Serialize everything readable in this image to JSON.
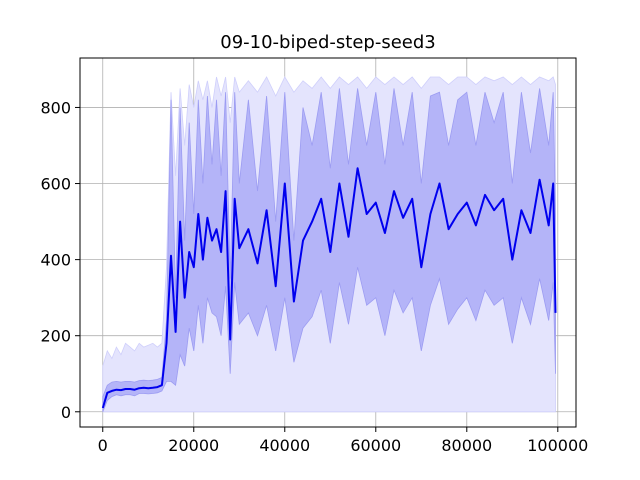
{
  "chart_data": {
    "type": "line",
    "title": "09-10-biped-step-seed3",
    "xlabel": "",
    "ylabel": "",
    "xlim": [
      -5000,
      104000
    ],
    "ylim": [
      -40,
      930
    ],
    "xticks": [
      0,
      20000,
      40000,
      60000,
      80000,
      100000
    ],
    "xtick_labels": [
      "0",
      "20000",
      "40000",
      "60000",
      "80000",
      "100000"
    ],
    "yticks": [
      0,
      200,
      400,
      600,
      800
    ],
    "ytick_labels": [
      "0",
      "200",
      "400",
      "600",
      "800"
    ],
    "grid": true,
    "colors": {
      "line": "#0000ee",
      "band_inner": "#b4b4f8",
      "band_outer": "#e4e4fd",
      "grid": "#b0b0b0",
      "axes": "#000000"
    },
    "series": [
      {
        "style": "mean-line",
        "x": [
          0,
          1000,
          2000,
          3000,
          4000,
          5000,
          6000,
          7000,
          8000,
          9000,
          10000,
          11000,
          12000,
          13000,
          14000,
          15000,
          16000,
          17000,
          18000,
          19000,
          20000,
          21000,
          22000,
          23000,
          24000,
          25000,
          26000,
          27000,
          28000,
          29000,
          30000,
          32000,
          34000,
          36000,
          38000,
          40000,
          42000,
          44000,
          46000,
          48000,
          50000,
          52000,
          54000,
          56000,
          58000,
          60000,
          62000,
          64000,
          66000,
          68000,
          70000,
          72000,
          74000,
          76000,
          78000,
          80000,
          82000,
          84000,
          86000,
          88000,
          90000,
          92000,
          94000,
          96000,
          98000,
          99000,
          99500
        ],
        "y": [
          10,
          50,
          55,
          58,
          57,
          60,
          60,
          58,
          62,
          63,
          62,
          63,
          65,
          70,
          180,
          410,
          210,
          500,
          300,
          420,
          380,
          520,
          400,
          510,
          450,
          480,
          420,
          580,
          190,
          560,
          430,
          480,
          390,
          530,
          330,
          600,
          290,
          450,
          500,
          560,
          420,
          600,
          460,
          640,
          520,
          550,
          470,
          580,
          510,
          560,
          380,
          520,
          600,
          480,
          520,
          550,
          490,
          570,
          530,
          560,
          400,
          530,
          470,
          610,
          490,
          600,
          260
        ]
      },
      {
        "style": "inner-band-upper",
        "y": [
          40,
          70,
          78,
          80,
          78,
          80,
          80,
          78,
          82,
          83,
          82,
          83,
          85,
          90,
          240,
          820,
          300,
          800,
          450,
          760,
          520,
          820,
          600,
          830,
          650,
          820,
          620,
          840,
          350,
          840,
          600,
          820,
          580,
          830,
          500,
          840,
          450,
          800,
          700,
          840,
          640,
          850,
          650,
          850,
          700,
          840,
          650,
          850,
          700,
          840,
          600,
          830,
          840,
          700,
          820,
          840,
          700,
          840,
          760,
          840,
          600,
          840,
          680,
          850,
          700,
          840,
          520
        ]
      },
      {
        "style": "inner-band-lower",
        "y": [
          0,
          30,
          40,
          45,
          42,
          45,
          45,
          42,
          48,
          48,
          47,
          48,
          50,
          55,
          80,
          80,
          70,
          150,
          120,
          220,
          160,
          280,
          180,
          300,
          260,
          250,
          200,
          330,
          100,
          340,
          230,
          260,
          200,
          280,
          160,
          300,
          130,
          220,
          250,
          320,
          180,
          340,
          230,
          380,
          280,
          300,
          200,
          320,
          260,
          300,
          160,
          280,
          350,
          230,
          270,
          300,
          240,
          320,
          280,
          300,
          180,
          300,
          230,
          350,
          240,
          340,
          100
        ]
      },
      {
        "style": "outer-band-upper",
        "y": [
          120,
          160,
          140,
          170,
          150,
          180,
          170,
          160,
          180,
          170,
          175,
          180,
          170,
          180,
          380,
          840,
          620,
          850,
          700,
          860,
          800,
          870,
          820,
          870,
          800,
          880,
          830,
          880,
          760,
          880,
          840,
          870,
          840,
          880,
          830,
          880,
          840,
          870,
          850,
          880,
          850,
          880,
          860,
          880,
          850,
          880,
          860,
          880,
          860,
          880,
          850,
          880,
          880,
          860,
          880,
          880,
          860,
          880,
          870,
          880,
          860,
          880,
          860,
          880,
          870,
          880,
          860
        ]
      },
      {
        "style": "outer-band-lower",
        "y": [
          0,
          0,
          0,
          0,
          0,
          0,
          0,
          0,
          0,
          0,
          0,
          0,
          0,
          0,
          0,
          0,
          0,
          0,
          0,
          0,
          0,
          0,
          0,
          0,
          0,
          0,
          0,
          0,
          0,
          0,
          0,
          0,
          0,
          0,
          0,
          0,
          0,
          0,
          0,
          0,
          0,
          0,
          0,
          0,
          0,
          0,
          0,
          0,
          0,
          0,
          0,
          0,
          0,
          0,
          0,
          0,
          0,
          0,
          0,
          0,
          0,
          0,
          0,
          0,
          0,
          0,
          0
        ]
      }
    ]
  }
}
